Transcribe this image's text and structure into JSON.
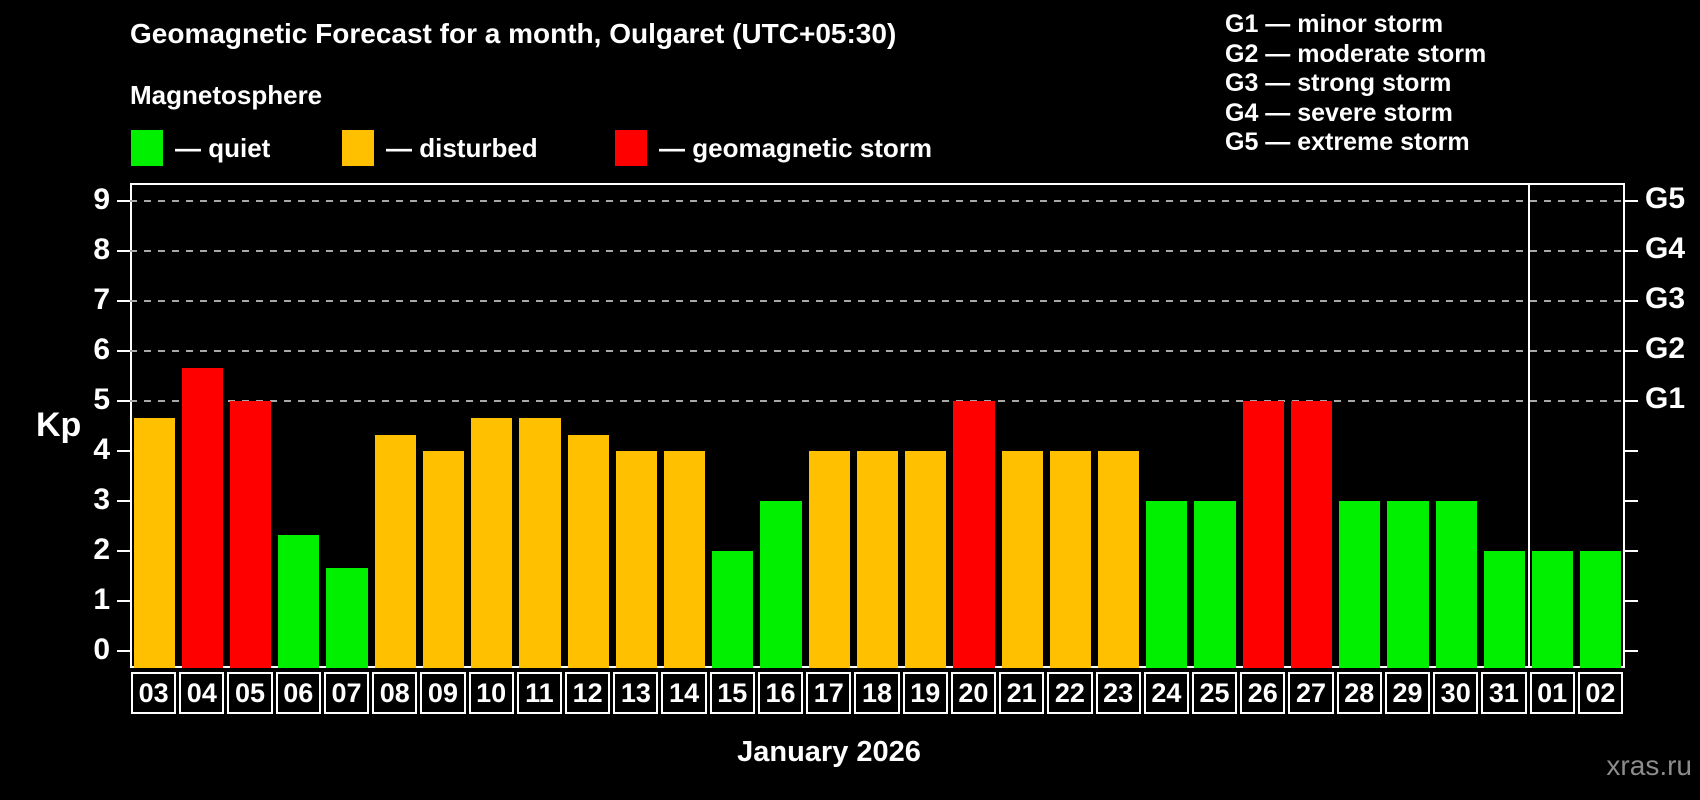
{
  "title": "Geomagnetic Forecast for a month, Oulgaret (UTC+05:30)",
  "subtitle": "Magnetosphere",
  "legend": {
    "quiet_label": "— quiet",
    "disturbed_label": "— disturbed",
    "storm_label": "— geomagnetic storm"
  },
  "storm_scale_legend": [
    "G1 — minor storm",
    "G2 — moderate storm",
    "G3 — strong storm",
    "G4 — severe storm",
    "G5 — extreme storm"
  ],
  "kp_axis_label": "Kp",
  "xlabel": "January 2026",
  "watermark": "xras.ru",
  "chart_data": {
    "type": "bar",
    "title": "Geomagnetic Forecast for a month, Oulgaret (UTC+05:30)",
    "xlabel": "January 2026",
    "ylabel": "Kp",
    "ylim": [
      0,
      9
    ],
    "y_ticks": [
      0,
      1,
      2,
      3,
      4,
      5,
      6,
      7,
      8,
      9
    ],
    "gridlines_at": [
      5,
      6,
      7,
      8,
      9
    ],
    "grid": "dashed-horizontal-at-storm-levels-only",
    "legend_position": "top-left",
    "right_axis_labels": [
      {
        "value": 5,
        "label": "G1"
      },
      {
        "value": 6,
        "label": "G2"
      },
      {
        "value": 7,
        "label": "G3"
      },
      {
        "value": 8,
        "label": "G4"
      },
      {
        "value": 9,
        "label": "G5"
      }
    ],
    "colors": {
      "quiet": "#00f000",
      "disturbed": "#ffc000",
      "storm": "#ff0000",
      "gridline": "#a8a8a8",
      "frame": "#ffffff"
    },
    "categories": [
      "03",
      "04",
      "05",
      "06",
      "07",
      "08",
      "09",
      "10",
      "11",
      "12",
      "13",
      "14",
      "15",
      "16",
      "17",
      "18",
      "19",
      "20",
      "21",
      "22",
      "23",
      "24",
      "25",
      "26",
      "27",
      "28",
      "29",
      "30",
      "31",
      "01",
      "02"
    ],
    "values": [
      4.67,
      5.67,
      5,
      2.33,
      1.67,
      4.33,
      4,
      4.67,
      4.67,
      4.33,
      4,
      4,
      2,
      3,
      4,
      4,
      4,
      5,
      4,
      4,
      4,
      3,
      3,
      5,
      5,
      3,
      3,
      3,
      2,
      2,
      2
    ],
    "statuses": [
      "disturbed",
      "storm",
      "storm",
      "quiet",
      "quiet",
      "disturbed",
      "disturbed",
      "disturbed",
      "disturbed",
      "disturbed",
      "disturbed",
      "disturbed",
      "quiet",
      "quiet",
      "disturbed",
      "disturbed",
      "disturbed",
      "storm",
      "disturbed",
      "disturbed",
      "disturbed",
      "quiet",
      "quiet",
      "storm",
      "storm",
      "quiet",
      "quiet",
      "quiet",
      "quiet",
      "quiet",
      "quiet"
    ],
    "month_separator_after_index": 28
  }
}
